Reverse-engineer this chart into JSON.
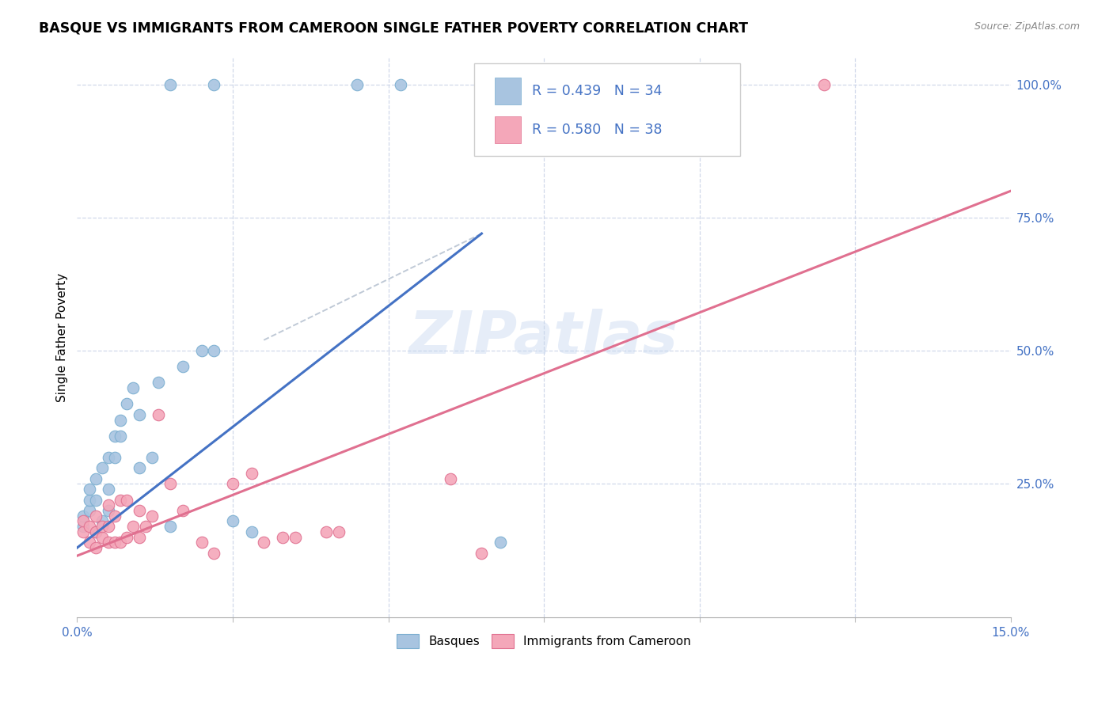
{
  "title": "BASQUE VS IMMIGRANTS FROM CAMEROON SINGLE FATHER POVERTY CORRELATION CHART",
  "source": "Source: ZipAtlas.com",
  "ylabel": "Single Father Poverty",
  "xlim": [
    0,
    0.15
  ],
  "ylim": [
    0,
    1.05
  ],
  "ytick_vals_right": [
    0.25,
    0.5,
    0.75,
    1.0
  ],
  "ytick_labels_right": [
    "25.0%",
    "50.0%",
    "75.0%",
    "100.0%"
  ],
  "basque_color": "#a8c4e0",
  "basque_edge": "#7aaed0",
  "cameroon_color": "#f4a7b9",
  "cameroon_edge": "#e07090",
  "basque_R": 0.439,
  "basque_N": 34,
  "cameroon_R": 0.58,
  "cameroon_N": 38,
  "blue_line_color": "#4472c4",
  "pink_line_color": "#e07090",
  "legend_R_color": "#4472c4",
  "watermark": "ZIPatlas",
  "basque_x": [
    0.001,
    0.001,
    0.002,
    0.002,
    0.002,
    0.003,
    0.003,
    0.003,
    0.004,
    0.004,
    0.005,
    0.005,
    0.005,
    0.006,
    0.006,
    0.007,
    0.007,
    0.008,
    0.009,
    0.01,
    0.01,
    0.012,
    0.013,
    0.015,
    0.017,
    0.02,
    0.022,
    0.025,
    0.028,
    0.015,
    0.022,
    0.045,
    0.052,
    0.068
  ],
  "basque_y": [
    0.17,
    0.19,
    0.2,
    0.22,
    0.24,
    0.16,
    0.22,
    0.26,
    0.18,
    0.28,
    0.2,
    0.24,
    0.3,
    0.3,
    0.34,
    0.34,
    0.37,
    0.4,
    0.43,
    0.38,
    0.28,
    0.3,
    0.44,
    0.17,
    0.47,
    0.5,
    0.5,
    0.18,
    0.16,
    1.0,
    1.0,
    1.0,
    1.0,
    0.14
  ],
  "cameroon_x": [
    0.001,
    0.001,
    0.002,
    0.002,
    0.003,
    0.003,
    0.003,
    0.004,
    0.004,
    0.005,
    0.005,
    0.005,
    0.006,
    0.006,
    0.007,
    0.007,
    0.008,
    0.008,
    0.009,
    0.01,
    0.01,
    0.011,
    0.012,
    0.013,
    0.015,
    0.017,
    0.02,
    0.022,
    0.025,
    0.028,
    0.03,
    0.033,
    0.035,
    0.04,
    0.042,
    0.06,
    0.065,
    0.12
  ],
  "cameroon_y": [
    0.16,
    0.18,
    0.14,
    0.17,
    0.13,
    0.16,
    0.19,
    0.15,
    0.17,
    0.14,
    0.17,
    0.21,
    0.14,
    0.19,
    0.14,
    0.22,
    0.15,
    0.22,
    0.17,
    0.15,
    0.2,
    0.17,
    0.19,
    0.38,
    0.25,
    0.2,
    0.14,
    0.12,
    0.25,
    0.27,
    0.14,
    0.15,
    0.15,
    0.16,
    0.16,
    0.26,
    0.12,
    1.0
  ],
  "blue_line_x": [
    0.0,
    0.065
  ],
  "blue_line_y": [
    0.13,
    0.72
  ],
  "pink_line_x": [
    0.0,
    0.15
  ],
  "pink_line_y": [
    0.115,
    0.8
  ],
  "dash_line_x": [
    0.03,
    0.065
  ],
  "dash_line_y": [
    0.52,
    0.72
  ]
}
